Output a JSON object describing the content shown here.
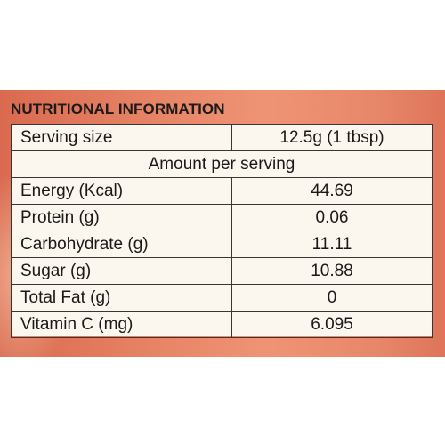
{
  "heading": "NUTRITIONAL INFORMATION",
  "serving": {
    "label": "Serving size",
    "value": "12.5g (1 tbsp)"
  },
  "amount_header": "Amount per serving",
  "rows": [
    {
      "label": "Energy (Kcal)",
      "value": "44.69"
    },
    {
      "label": "Protein (g)",
      "value": "0.06"
    },
    {
      "label": "Carbohydrate (g)",
      "value": "11.11"
    },
    {
      "label": "Sugar (g)",
      "value": "10.88"
    },
    {
      "label": "Total Fat (g)",
      "value": "0"
    },
    {
      "label": "Vitamin C (mg)",
      "value": "6.095"
    }
  ],
  "colors": {
    "panel": "#e78466",
    "table_bg": "#fbf6ee",
    "border": "#3a3535"
  }
}
